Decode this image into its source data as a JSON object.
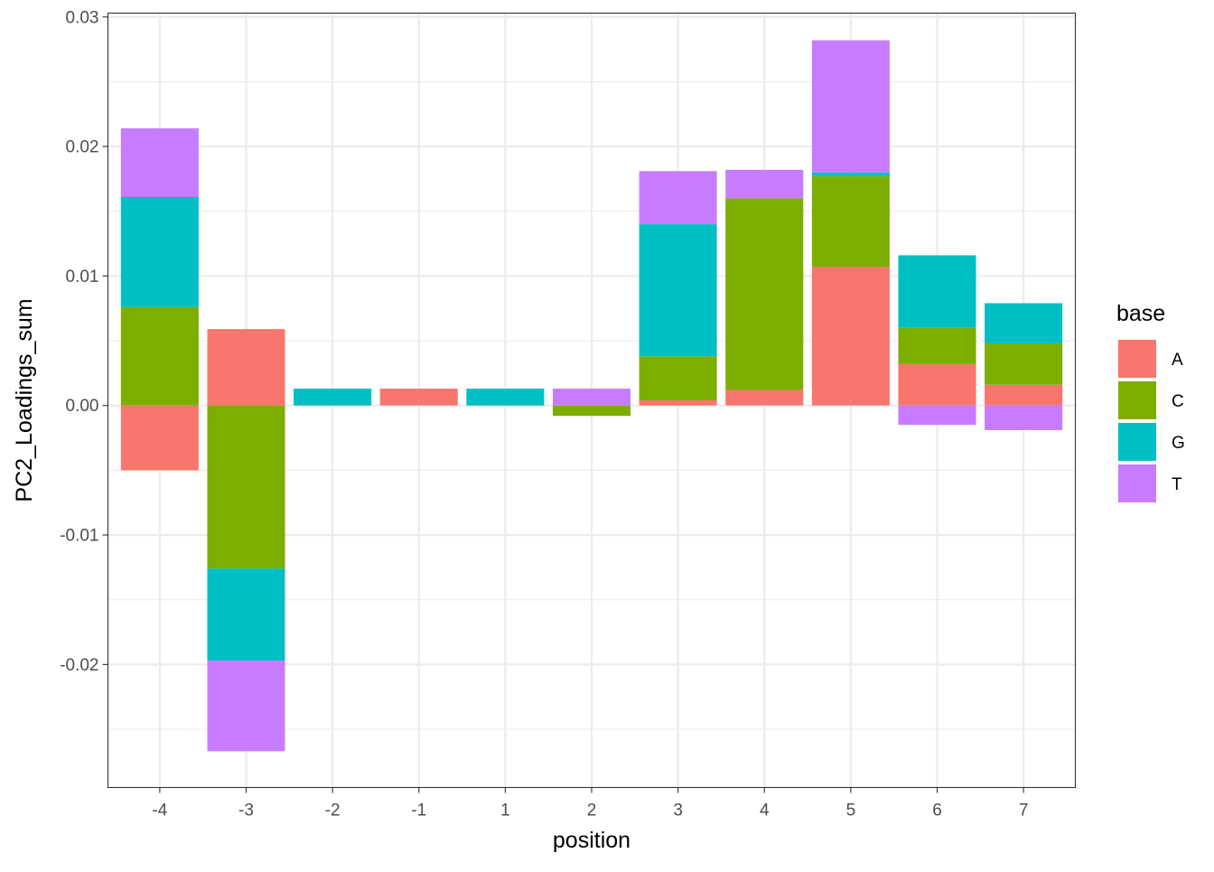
{
  "chart_data": {
    "type": "bar",
    "stacked": true,
    "title": "",
    "xlabel": "position",
    "ylabel": "PC2_Loadings_sum",
    "categories": [
      "-4",
      "-3",
      "-2",
      "-1",
      "1",
      "2",
      "3",
      "4",
      "5",
      "6",
      "7"
    ],
    "ylim": [
      -0.0295,
      0.0303
    ],
    "yticks": [
      -0.02,
      -0.01,
      0.0,
      0.01,
      0.02,
      0.03
    ],
    "ytick_labels": [
      "-0.02",
      "-0.01",
      "0.00",
      "0.01",
      "0.02",
      "0.03"
    ],
    "grid": true,
    "legend": {
      "title": "base",
      "position": "right"
    },
    "series": [
      {
        "name": "A",
        "color": "#F8766D",
        "values": [
          -0.005,
          0.0059,
          0.0,
          0.0013,
          0.0,
          0.0,
          0.0004,
          0.0012,
          0.0107,
          0.0032,
          0.0016
        ]
      },
      {
        "name": "C",
        "color": "#7CAE00",
        "values": [
          0.0076,
          -0.0126,
          0.0,
          0.0,
          0.0,
          -0.0008,
          0.0034,
          0.0148,
          0.007,
          0.0028,
          0.0032
        ]
      },
      {
        "name": "G",
        "color": "#00BFC4",
        "values": [
          0.0085,
          -0.0071,
          0.0013,
          0.0,
          0.0013,
          0.0,
          0.0102,
          0.0,
          0.0003,
          0.0056,
          0.0031
        ]
      },
      {
        "name": "T",
        "color": "#C77CFF",
        "values": [
          0.0053,
          -0.007,
          0.0,
          0.0,
          0.0,
          0.0013,
          0.0041,
          0.0022,
          0.0102,
          -0.0015,
          -0.0019
        ]
      }
    ]
  }
}
